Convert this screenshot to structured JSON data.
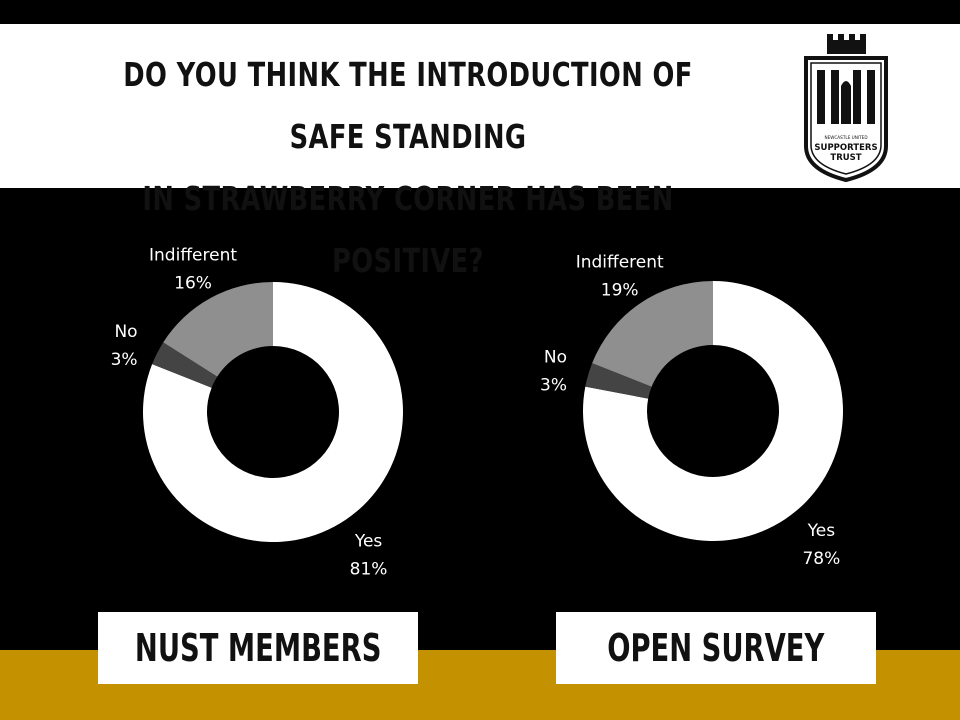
{
  "header": {
    "title_line1": "DO YOU THINK THE INTRODUCTION OF SAFE STANDING",
    "title_line2": "IN STRAWBERRY CORNER HAS BEEN POSITIVE?",
    "logo": {
      "icon": "castle-shield-icon",
      "text_small": "NEWCASTLE UNITED",
      "text_line1": "SUPPORTERS",
      "text_line2": "TRUST"
    }
  },
  "colors": {
    "background": "#000000",
    "header": "#ffffff",
    "gold": "#c49100",
    "yes": "#ffffff",
    "no": "#444444",
    "indifferent": "#8f8f8f"
  },
  "chart_data": [
    {
      "type": "pie",
      "donut": true,
      "name": "NUST MEMBERS",
      "slices": [
        {
          "label": "Yes",
          "value": 81,
          "display": "81%"
        },
        {
          "label": "No",
          "value": 3,
          "display": "3%"
        },
        {
          "label": "Indifferent",
          "value": 16,
          "display": "16%"
        }
      ]
    },
    {
      "type": "pie",
      "donut": true,
      "name": "OPEN SURVEY",
      "slices": [
        {
          "label": "Yes",
          "value": 78,
          "display": "78%"
        },
        {
          "label": "No",
          "value": 3,
          "display": "3%"
        },
        {
          "label": "Indifferent",
          "value": 19,
          "display": "19%"
        }
      ]
    }
  ]
}
